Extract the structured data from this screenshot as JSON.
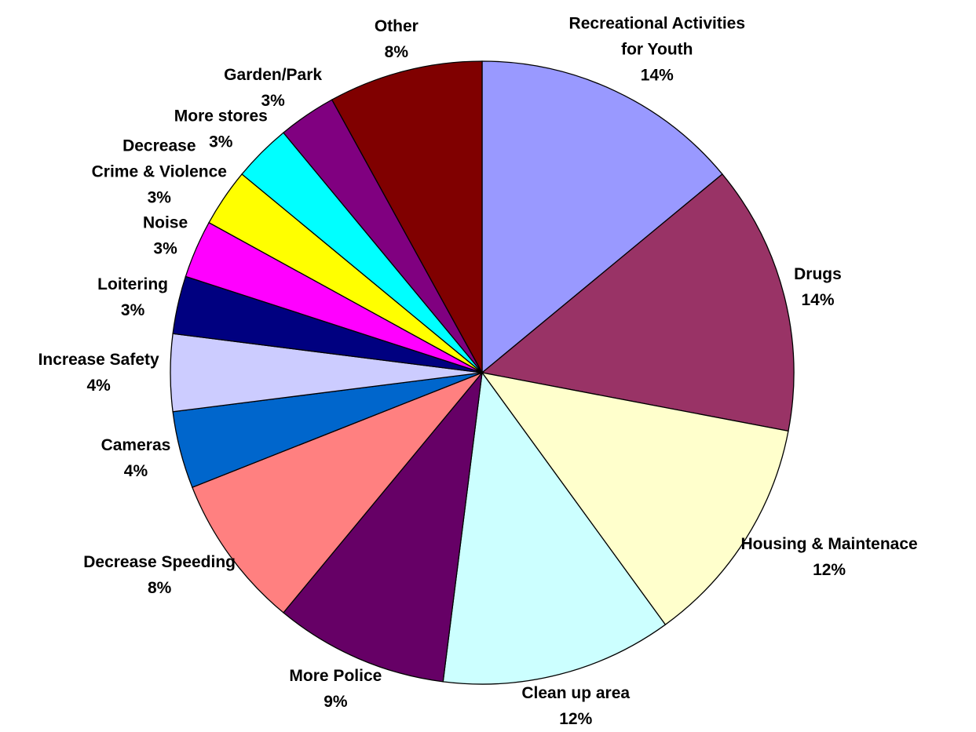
{
  "chart_data": {
    "type": "pie",
    "categories": [
      "Recreational Activities\nfor Youth",
      "Drugs",
      "Housing & Maintenace",
      "Clean up area",
      "More Police",
      "Decrease Speeding",
      "Cameras",
      "Increase Safety",
      "Loitering",
      "Noise",
      "Decrease\nCrime & Violence",
      "More stores",
      "Garden/Park",
      "Other"
    ],
    "values": [
      14,
      14,
      12,
      12,
      9,
      8,
      4,
      4,
      3,
      3,
      3,
      3,
      3,
      8
    ],
    "value_labels": [
      "14%",
      "14%",
      "12%",
      "12%",
      "9%",
      "8%",
      "4%",
      "4%",
      "3%",
      "3%",
      "3%",
      "3%",
      "3%",
      "8%"
    ],
    "colors": [
      "#9999FF",
      "#993366",
      "#FFFFCC",
      "#CCFFFF",
      "#660066",
      "#FF8080",
      "#0066CC",
      "#CCCCFF",
      "#000080",
      "#FF00FF",
      "#FFFF00",
      "#00FFFF",
      "#800080",
      "#800000"
    ]
  }
}
